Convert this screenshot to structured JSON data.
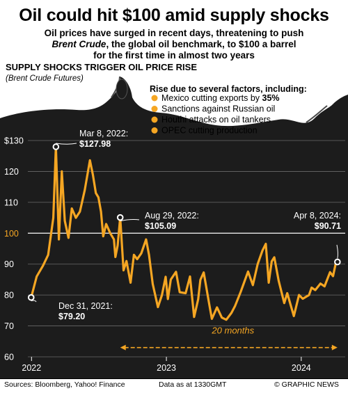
{
  "headline": "Oil could hit $100 amid supply shocks",
  "subhead": {
    "line1": "Oil prices have surged in recent days, threatening to push",
    "line2_italic": "Brent Crude",
    "line2_rest": ", the global oil benchmark, to $100 a barrel",
    "line3": "for the first time in almost two years"
  },
  "chart_title": "SUPPLY SHOCKS TRIGGER OIL PRICE RISE",
  "chart_subtitle": "(Brent Crude Futures)",
  "factors": {
    "title": "Rise due to several factors, including:",
    "items": [
      {
        "prefix": "Mexico cutting exports by ",
        "bold": "35%"
      },
      {
        "prefix": "Sanctions against Russian oil",
        "bold": ""
      },
      {
        "prefix": "Houthi attacks on oil tankers",
        "bold": ""
      },
      {
        "prefix": "OPEC cutting production",
        "bold": ""
      }
    ]
  },
  "colors": {
    "background_dark": "#1c1c1c",
    "line": "#f5a623",
    "highlight_tick": "#f5a623",
    "text_light": "#ffffff"
  },
  "chart_data": {
    "type": "line",
    "ylim": [
      60,
      130
    ],
    "yticks": [
      130,
      120,
      110,
      100,
      90,
      80,
      70,
      60
    ],
    "ytick_labels": [
      "$130",
      "120",
      "110",
      "100",
      "90",
      "80",
      "70",
      "60"
    ],
    "highlight_ytick": 100,
    "xtick_labels": [
      {
        "label": "2022",
        "date": "2022-01-01"
      },
      {
        "label": "2023",
        "date": "2023-01-01"
      },
      {
        "label": "2024",
        "date": "2024-01-01"
      }
    ],
    "x_range": [
      "2021-12-22",
      "2024-04-29"
    ],
    "grid": "horizontal",
    "series": [
      {
        "points": [
          [
            "2021-12-31",
            79.2
          ],
          [
            "2022-01-15",
            86
          ],
          [
            "2022-02-01",
            89.5
          ],
          [
            "2022-02-15",
            93
          ],
          [
            "2022-03-01",
            105
          ],
          [
            "2022-03-08",
            127.98
          ],
          [
            "2022-03-16",
            98
          ],
          [
            "2022-03-24",
            120
          ],
          [
            "2022-04-01",
            104
          ],
          [
            "2022-04-11",
            98.5
          ],
          [
            "2022-04-20",
            108
          ],
          [
            "2022-05-01",
            105
          ],
          [
            "2022-05-12",
            107
          ],
          [
            "2022-05-25",
            114
          ],
          [
            "2022-06-08",
            123.6
          ],
          [
            "2022-06-16",
            119
          ],
          [
            "2022-06-24",
            113
          ],
          [
            "2022-07-01",
            111.6
          ],
          [
            "2022-07-08",
            107
          ],
          [
            "2022-07-14",
            99
          ],
          [
            "2022-07-22",
            103
          ],
          [
            "2022-08-02",
            100
          ],
          [
            "2022-08-12",
            98
          ],
          [
            "2022-08-16",
            92.3
          ],
          [
            "2022-08-22",
            96
          ],
          [
            "2022-08-29",
            105.09
          ],
          [
            "2022-09-07",
            88
          ],
          [
            "2022-09-15",
            91
          ],
          [
            "2022-09-26",
            84
          ],
          [
            "2022-10-05",
            93
          ],
          [
            "2022-10-14",
            91.6
          ],
          [
            "2022-10-25",
            93.5
          ],
          [
            "2022-11-07",
            98
          ],
          [
            "2022-11-15",
            93
          ],
          [
            "2022-11-25",
            83.6
          ],
          [
            "2022-12-09",
            76.1
          ],
          [
            "2022-12-20",
            80
          ],
          [
            "2022-12-30",
            85.9
          ],
          [
            "2023-01-05",
            78.7
          ],
          [
            "2023-01-13",
            85
          ],
          [
            "2023-01-27",
            87.5
          ],
          [
            "2023-02-06",
            80.9
          ],
          [
            "2023-02-22",
            80.6
          ],
          [
            "2023-03-06",
            86
          ],
          [
            "2023-03-17",
            72.9
          ],
          [
            "2023-03-28",
            78.6
          ],
          [
            "2023-04-03",
            84.9
          ],
          [
            "2023-04-12",
            87.3
          ],
          [
            "2023-04-26",
            77.7
          ],
          [
            "2023-05-04",
            72.3
          ],
          [
            "2023-05-18",
            76
          ],
          [
            "2023-05-31",
            72.7
          ],
          [
            "2023-06-12",
            72
          ],
          [
            "2023-06-26",
            74.2
          ],
          [
            "2023-07-06",
            76.5
          ],
          [
            "2023-07-21",
            81
          ],
          [
            "2023-08-10",
            87.6
          ],
          [
            "2023-08-23",
            83.2
          ],
          [
            "2023-09-05",
            90
          ],
          [
            "2023-09-18",
            94.4
          ],
          [
            "2023-09-27",
            96.55
          ],
          [
            "2023-10-05",
            84
          ],
          [
            "2023-10-13",
            90.9
          ],
          [
            "2023-10-20",
            92.2
          ],
          [
            "2023-11-01",
            84.6
          ],
          [
            "2023-11-16",
            77.4
          ],
          [
            "2023-11-24",
            80.6
          ],
          [
            "2023-12-12",
            73.2
          ],
          [
            "2023-12-26",
            80
          ],
          [
            "2024-01-05",
            78.8
          ],
          [
            "2024-01-22",
            80
          ],
          [
            "2024-01-29",
            82.4
          ],
          [
            "2024-02-08",
            81.6
          ],
          [
            "2024-02-22",
            83.7
          ],
          [
            "2024-03-04",
            82.8
          ],
          [
            "2024-03-19",
            87.4
          ],
          [
            "2024-03-27",
            86.1
          ],
          [
            "2024-04-05",
            91.2
          ],
          [
            "2024-04-08",
            90.71
          ]
        ]
      }
    ],
    "annotations": [
      {
        "id": "start",
        "date": "2021-12-31",
        "value": 79.2,
        "label": "Dec 31, 2021:",
        "value_label": "$79.20"
      },
      {
        "id": "peak",
        "date": "2022-03-08",
        "value": 127.98,
        "label": "Mar 8, 2022:",
        "value_label": "$127.98"
      },
      {
        "id": "aug",
        "date": "2022-08-29",
        "value": 105.09,
        "label": "Aug 29, 2022:",
        "value_label": "$105.09"
      },
      {
        "id": "end",
        "date": "2024-04-08",
        "value": 90.71,
        "label": "Apr 8, 2024:",
        "value_label": "$90.71"
      }
    ],
    "span": {
      "from": "2022-08-29",
      "to": "2024-04-08",
      "label": "20 months"
    }
  },
  "footer": {
    "source": "Sources: Bloomberg, Yahoo! Finance",
    "data_time": "Data as at 1330GMT",
    "credit": "© GRAPHIC NEWS"
  }
}
